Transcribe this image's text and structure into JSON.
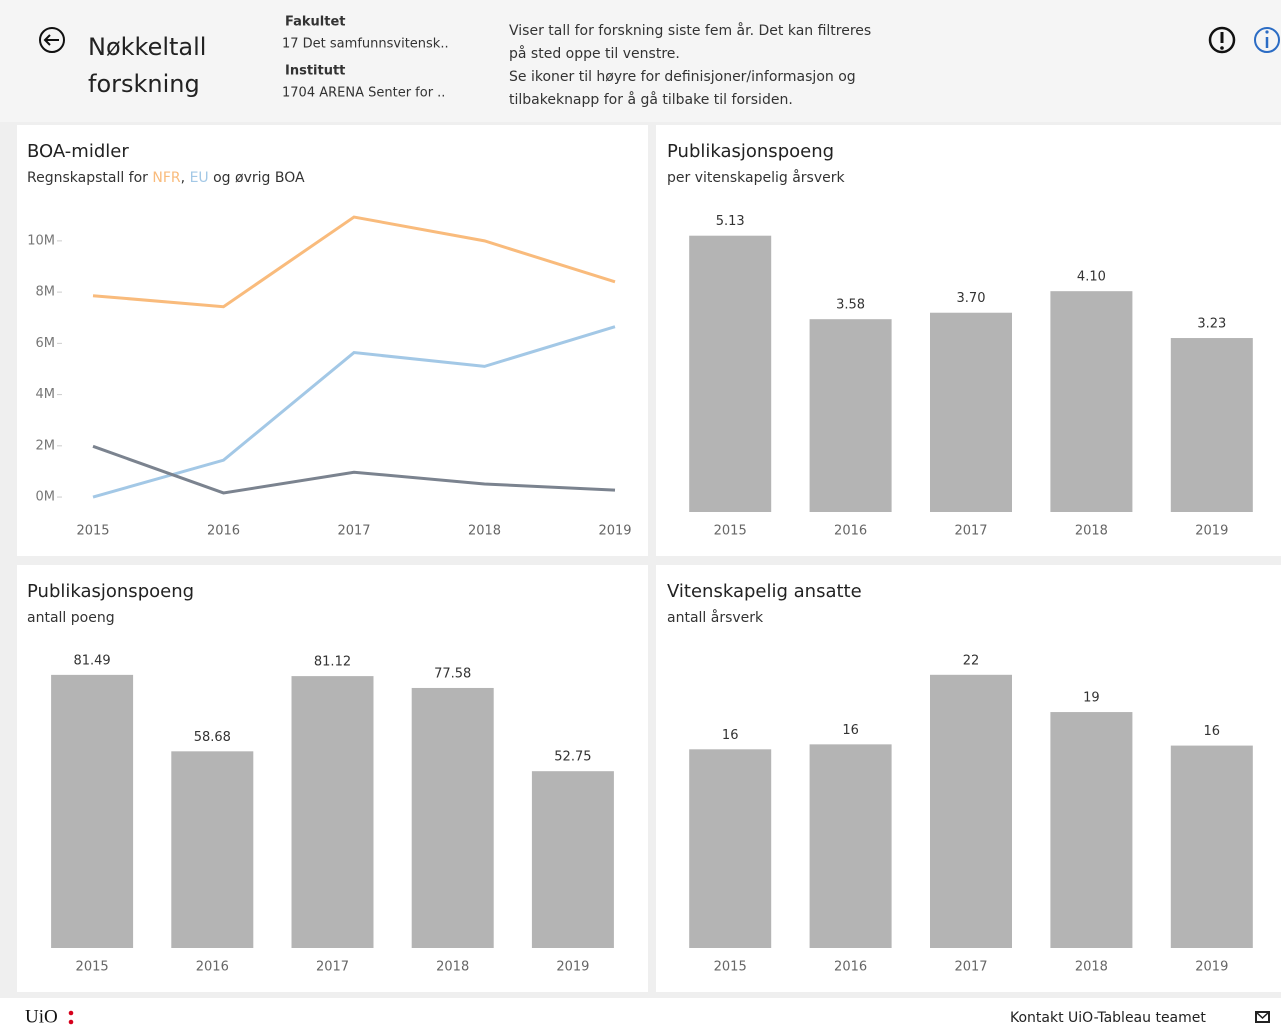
{
  "header": {
    "title": "Nøkkeltall forskning",
    "filters": [
      {
        "label": "Fakultet",
        "value": "17 Det samfunnsvitensk.."
      },
      {
        "label": "Institutt",
        "value": "1704 ARENA Senter for .."
      }
    ],
    "description": [
      "Viser tall for forskning siste fem år. Det kan filtreres",
      "på sted oppe til venstre.",
      "Se ikoner til høyre for definisjoner/informasjon og",
      "tilbakeknapp for å gå tilbake til forsiden."
    ]
  },
  "chart_data": [
    {
      "type": "line",
      "title": "BOA-midler",
      "subtitle_lead": "Regnskapstall for",
      "subtitle_sep": ",",
      "subtitle_join": "og",
      "categories": [
        "2015",
        "2016",
        "2017",
        "2018",
        "2019"
      ],
      "series": [
        {
          "name": "NFR",
          "color": "#f9bb7c",
          "values": [
            7860000,
            7430000,
            10930000,
            10000000,
            8400000
          ]
        },
        {
          "name": "EU",
          "color": "#a3c8e6",
          "values": [
            0,
            1440000,
            5640000,
            5100000,
            6650000
          ]
        },
        {
          "name": "øvrig BOA",
          "color": "#7b838f",
          "values": [
            1980000,
            160000,
            970000,
            510000,
            270000
          ]
        }
      ],
      "ylim": [
        -700000,
        11400000
      ],
      "yticks": [
        {
          "value": 0,
          "label": "0M"
        },
        {
          "value": 2000000,
          "label": "2M"
        },
        {
          "value": 4000000,
          "label": "4M"
        },
        {
          "value": 6000000,
          "label": "6M"
        },
        {
          "value": 8000000,
          "label": "8M"
        },
        {
          "value": 10000000,
          "label": "10M"
        }
      ]
    },
    {
      "type": "bar",
      "title": "Publikasjonspoeng",
      "subtitle": "per vitenskapelig årsverk",
      "color": "#b4b4b4",
      "categories": [
        "2015",
        "2016",
        "2017",
        "2018",
        "2019"
      ],
      "values": [
        5.13,
        3.58,
        3.7,
        4.1,
        3.23
      ],
      "value_labels": [
        "5.13",
        "3.58",
        "3.70",
        "4.10",
        "3.23"
      ],
      "ylim": [
        0,
        5.7
      ]
    },
    {
      "type": "bar",
      "title": "Publikasjonspoeng",
      "subtitle": "antall poeng",
      "color": "#b4b4b4",
      "categories": [
        "2015",
        "2016",
        "2017",
        "2018",
        "2019"
      ],
      "values": [
        81.49,
        58.68,
        81.12,
        77.58,
        52.75
      ],
      "ylim": [
        0,
        90.4
      ]
    },
    {
      "type": "bar",
      "title": "Vitenskapelig ansatte",
      "subtitle": "antall årsverk",
      "color": "#b4b4b4",
      "categories": [
        "2015",
        "2016",
        "2017",
        "2018",
        "2019"
      ],
      "values": [
        16.0,
        16.4,
        22.0,
        19.0,
        16.3
      ],
      "value_labels": [
        "16",
        "16",
        "22",
        "19",
        "16"
      ],
      "ylim": [
        0,
        24.4
      ]
    }
  ],
  "footer": {
    "logo": "UiO",
    "contact": "Kontakt UiO-Tableau teamet"
  }
}
